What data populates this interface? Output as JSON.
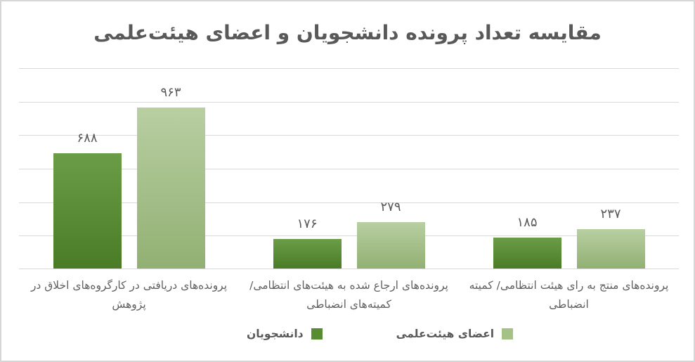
{
  "title": "مقایسه تعداد پرونده دانشجویان و اعضای هیئت‌علمی",
  "chart_data": {
    "type": "bar",
    "title": "مقایسه تعداد پرونده دانشجویان و اعضای هیئت‌علمی",
    "direction": "rtl",
    "categories": [
      "پرونده‌های دریافتی در کارگروه‌های اخلاق در پژوهش",
      "پرونده‌های ارجاع شده به هیئت‌های انتظامی/ کمیته‌های انضباطی",
      "پرونده‌های منتج به رای هیئت انتظامی/ کمیته انضباطی"
    ],
    "category_lines": [
      [
        "پرونده‌های دریافتی در کارگروه‌های اخلاق در",
        "پژوهش"
      ],
      [
        "پرونده‌های ارجاع شده به هیئت‌های انتظامی/",
        "کمیته‌های انضباطی"
      ],
      [
        "پرونده‌های منتج به رای هیئت انتظامی/ کمیته",
        "انضباطی"
      ]
    ],
    "series": [
      {
        "name": "دانشجویان",
        "values": [
          688,
          176,
          185
        ],
        "labels": [
          "۶۸۸",
          "۱۷۶",
          "۱۸۵"
        ],
        "color_top": "#6b9d49",
        "color_bottom": "#4a7b26",
        "legend_color": "#578c33"
      },
      {
        "name": "اعضای هیئت‌علمی",
        "values": [
          963,
          279,
          237
        ],
        "labels": [
          "۹۶۳",
          "۲۷۹",
          "۲۳۷"
        ],
        "color_top": "#b8cfa2",
        "color_bottom": "#92b073",
        "legend_color": "#a5c286"
      }
    ],
    "ylim": [
      0,
      1200
    ],
    "gridline_step": 200,
    "grid": true,
    "y_axis_labels_visible": false,
    "legend_position": "bottom"
  },
  "colors": {
    "gridline": "#d9d9d9",
    "title_text": "#595959",
    "value_text": "#595959",
    "category_text": "#616161",
    "border": "#d6d6d6",
    "background": "#ffffff"
  }
}
